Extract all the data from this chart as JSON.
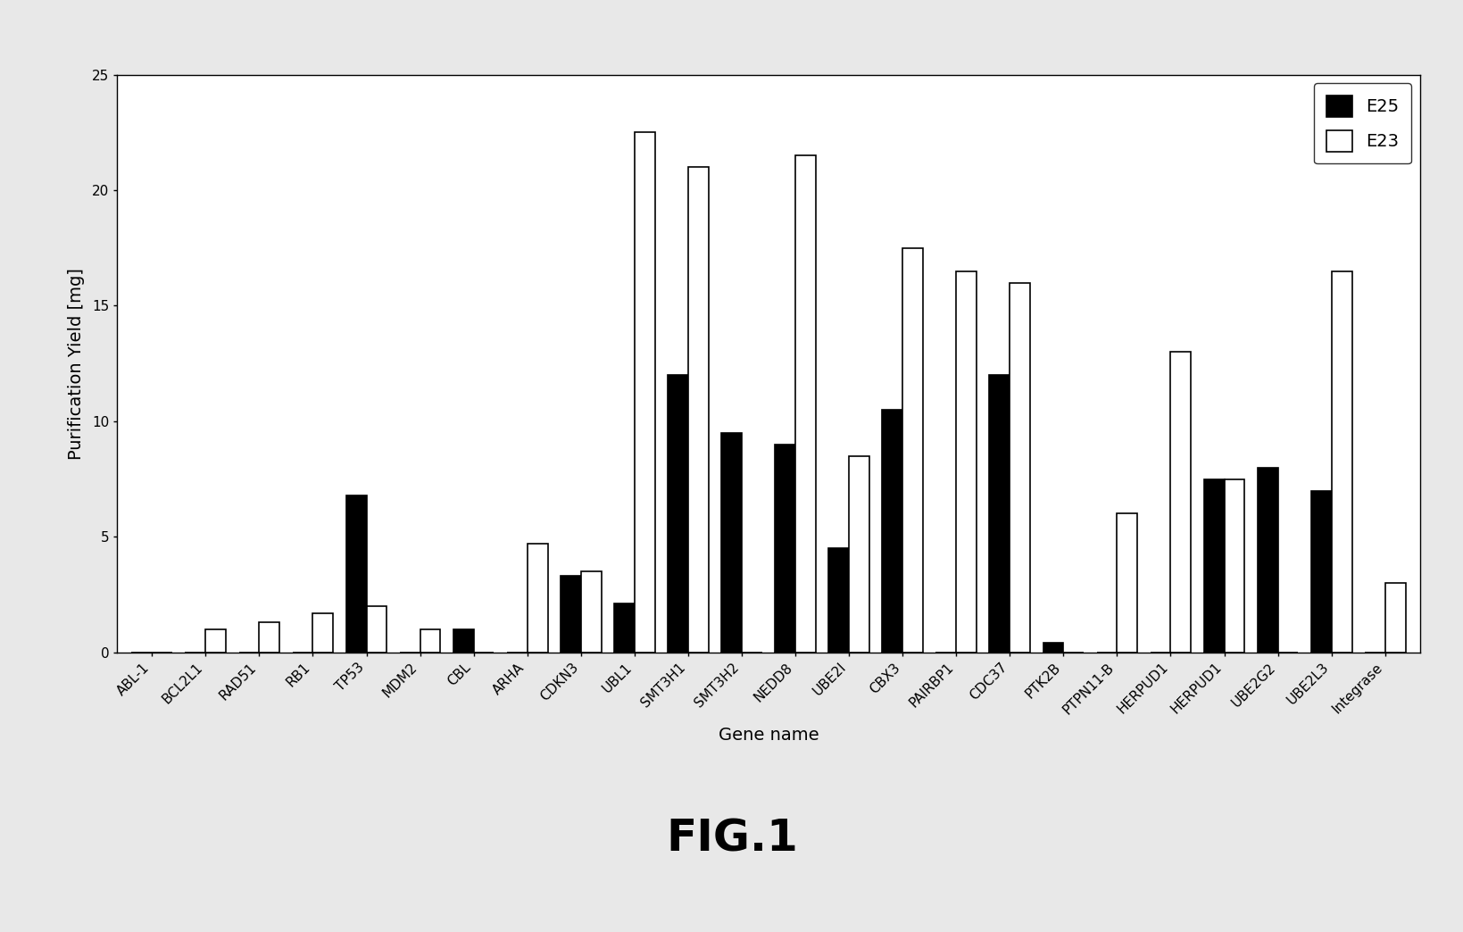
{
  "categories": [
    "ABL-1",
    "BCL2L1",
    "RAD51",
    "RB1",
    "TP53",
    "MDM2",
    "CBL",
    "ARHA",
    "CDKN3",
    "UBL1",
    "SMT3H1",
    "SMT3H2",
    "NEDD8",
    "UBE2I",
    "CBX3",
    "PAIRBP1",
    "CDC37",
    "PTK2B",
    "PTPN11-B",
    "HERPUD1",
    "HERPUD1",
    "UBE2G2",
    "UBE2L3",
    "Integrase"
  ],
  "e25_values": [
    0,
    0,
    0,
    0,
    6.8,
    0,
    1.0,
    0,
    3.3,
    2.1,
    12.0,
    9.5,
    9.0,
    4.5,
    10.5,
    0,
    12.0,
    0.4,
    0,
    0,
    7.5,
    8.0,
    7.0,
    0
  ],
  "e23_values": [
    0,
    1.0,
    1.3,
    1.7,
    2.0,
    1.0,
    0,
    4.7,
    3.5,
    22.5,
    21.0,
    0,
    21.5,
    8.5,
    17.5,
    16.5,
    16.0,
    0,
    6.0,
    13.0,
    7.5,
    0,
    16.5,
    3.0
  ],
  "ylabel": "Purification Yield [mg]",
  "xlabel": "Gene name",
  "ylim": [
    0,
    25
  ],
  "yticks": [
    0,
    5,
    10,
    15,
    20,
    25
  ],
  "legend_e25": "E25",
  "legend_e23": "E23",
  "fig_label": "FIG.1",
  "bar_width": 0.38,
  "background_color": "#e8e8e8",
  "plot_bg_color": "#ffffff",
  "bar_color_e25": "#000000",
  "bar_color_e23": "#ffffff",
  "bar_edge_color": "#000000",
  "title_fontsize": 36,
  "axis_label_fontsize": 14,
  "tick_fontsize": 11,
  "legend_fontsize": 14
}
